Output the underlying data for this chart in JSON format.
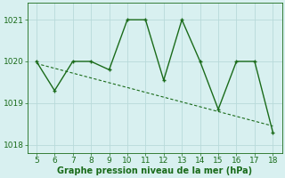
{
  "x": [
    5,
    6,
    7,
    8,
    9,
    10,
    11,
    12,
    13,
    14,
    15,
    16,
    17,
    18
  ],
  "y": [
    1020.0,
    1019.3,
    1020.0,
    1020.0,
    1019.8,
    1021.0,
    1021.0,
    1019.55,
    1021.0,
    1020.0,
    1018.85,
    1020.0,
    1020.0,
    1018.3
  ],
  "trend_x": [
    5,
    18
  ],
  "trend_y": [
    1019.95,
    1018.45
  ],
  "line_color": "#1a6b1a",
  "bg_color": "#d8f0f0",
  "grid_color": "#b8dada",
  "xlabel": "Graphe pression niveau de la mer (hPa)",
  "ylim": [
    1017.8,
    1021.4
  ],
  "xlim": [
    4.5,
    18.5
  ],
  "yticks": [
    1018,
    1019,
    1020,
    1021
  ],
  "xticks": [
    5,
    6,
    7,
    8,
    9,
    10,
    11,
    12,
    13,
    14,
    15,
    16,
    17,
    18
  ],
  "xlabel_fontsize": 7,
  "tick_fontsize": 6.5,
  "marker_size": 3.5,
  "line_width": 1.0,
  "trend_linewidth": 0.8
}
